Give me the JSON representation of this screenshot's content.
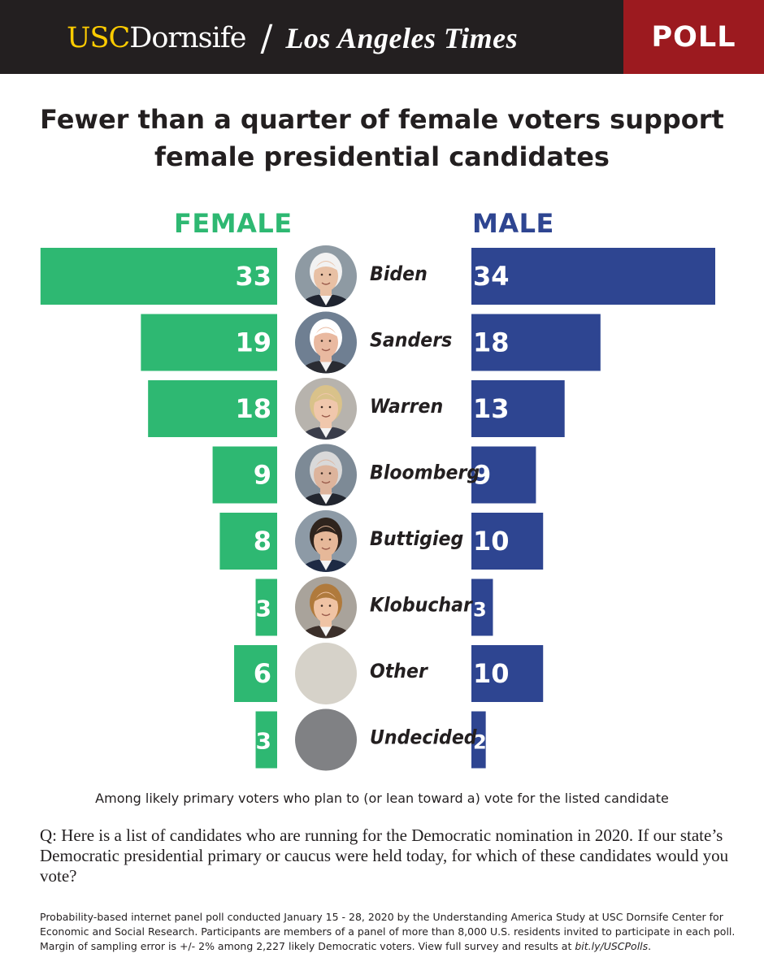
{
  "header": {
    "brand_usc": "USC",
    "brand_dornsife": "Dornsife",
    "brand_slash": "/",
    "brand_lat": "Los Angeles Times",
    "poll_label": "POLL"
  },
  "title": {
    "line1": "Fewer than a quarter of female voters support",
    "line2": "female presidential candidates"
  },
  "chart_data": {
    "type": "bar",
    "orientation": "horizontal-butterfly",
    "title": "Fewer than a quarter of female voters support female presidential candidates",
    "categories": [
      "Biden",
      "Sanders",
      "Warren",
      "Bloomberg",
      "Buttigieg",
      "Klobuchar",
      "Other",
      "Undecided"
    ],
    "series": [
      {
        "name": "FEMALE",
        "color": "#2eb872",
        "values": [
          33,
          19,
          18,
          9,
          8,
          3,
          6,
          3
        ]
      },
      {
        "name": "MALE",
        "color": "#2e4591",
        "values": [
          34,
          18,
          13,
          9,
          10,
          3,
          10,
          2
        ]
      }
    ],
    "xlim": [
      0,
      34
    ],
    "avatars": [
      {
        "name": "Biden",
        "kind": "photo",
        "skin": "#e8c0a4",
        "hair": "#f2f2f2",
        "suit": "#1f2430",
        "bg": "#8e9aa3"
      },
      {
        "name": "Sanders",
        "kind": "photo",
        "skin": "#e9b9a0",
        "hair": "#ffffff",
        "suit": "#2a2c33",
        "bg": "#6f7f92"
      },
      {
        "name": "Warren",
        "kind": "photo",
        "skin": "#f0c7ac",
        "hair": "#d9c28a",
        "suit": "#3a3d4a",
        "bg": "#b7b3ad"
      },
      {
        "name": "Bloomberg",
        "kind": "photo",
        "skin": "#ddb49c",
        "hair": "#d9d9d9",
        "suit": "#22262f",
        "bg": "#7d8a96"
      },
      {
        "name": "Buttigieg",
        "kind": "photo",
        "skin": "#e6b899",
        "hair": "#2f241d",
        "suit": "#1e2a44",
        "bg": "#8d9aa6"
      },
      {
        "name": "Klobuchar",
        "kind": "photo",
        "skin": "#efc3a4",
        "hair": "#b07a3c",
        "suit": "#3b2f2a",
        "bg": "#a9a39b"
      },
      {
        "name": "Other",
        "kind": "plain",
        "bg": "#d6d2c9"
      },
      {
        "name": "Undecided",
        "kind": "plain",
        "bg": "#808184"
      }
    ]
  },
  "note": "Among likely primary voters who plan to (or lean toward a) vote for the listed candidate",
  "question": "Q: Here is a list of candidates who are running for the Democratic nomination in 2020. If our state’s Democratic presidential primary or caucus were held today, for which of these candidates would you vote?",
  "methodology": {
    "text": "Probability-based internet panel poll conducted January 15 - 28, 2020 by the Understanding America Study at USC Dornsife Center for Economic and Social Research. Participants are members of a panel of more than 8,000 U.S. residents invited to participate in each poll. Margin of sampling error is +/- 2% among 2,227 likely Democratic voters. View full survey and results at ",
    "link": "bit.ly/USCPolls",
    "end": "."
  }
}
